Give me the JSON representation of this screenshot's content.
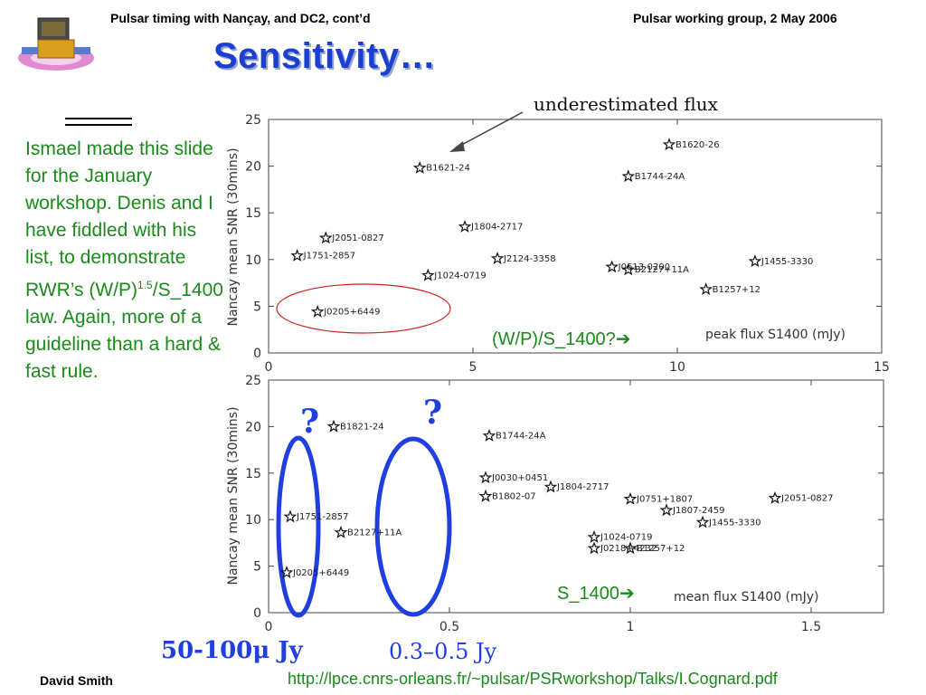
{
  "header": {
    "left": "Pulsar timing with Nançay, and DC2, cont’d",
    "right": "Pulsar working group, 2 May 2006"
  },
  "title": "Sensitivity…",
  "body_text": {
    "part1": "Ismael made this slide for the January workshop. Denis and I have fiddled with his list, to demonstrate RWR’s (W/P)",
    "sup": "1.5",
    "part2": "/S_1400 law. Again, more of a guideline than a hard & fast rule."
  },
  "arrow_labels": {
    "wp": "(W/P)/S_1400?",
    "s1400": "S_1400",
    "arrow_glyph": "➔"
  },
  "footer": {
    "author": "David Smith",
    "url": "http://lpce.cnrs-orleans.fr/~pulsar/PSRworkshop/Talks/I.Cognard.pdf"
  },
  "colors": {
    "green_text": "#1a8a1a",
    "title_blue": "#1a3fd1",
    "ellipse_blue": "#1f3fe0",
    "ellipse_red": "#cc2222"
  },
  "annotations": {
    "underestimated": "underestimated flux",
    "range_low": "50-100μ Jy",
    "range_high": "0.3–0.5 Jy",
    "question": "?"
  },
  "chart_data": [
    {
      "type": "scatter",
      "xlabel": "peak flux S1400 (mJy)",
      "ylabel": "Nancay mean SNR (30mins)",
      "xlim": [
        0,
        15
      ],
      "ylim": [
        0,
        25
      ],
      "xticks": [
        0,
        5,
        10,
        15
      ],
      "yticks": [
        0,
        5,
        10,
        15,
        20,
        25
      ],
      "points": [
        {
          "name": "B1620-26",
          "x": 9.8,
          "y": 22.3
        },
        {
          "name": "B1621-24",
          "x": 3.7,
          "y": 19.8
        },
        {
          "name": "B1744-24A",
          "x": 8.8,
          "y": 18.9
        },
        {
          "name": "J1804-2717",
          "x": 4.8,
          "y": 13.5
        },
        {
          "name": "J2051-0827",
          "x": 1.4,
          "y": 12.3
        },
        {
          "name": "J1751-2857",
          "x": 0.7,
          "y": 10.4
        },
        {
          "name": "J2124-3358",
          "x": 5.6,
          "y": 10.1
        },
        {
          "name": "J1024-0719",
          "x": 3.9,
          "y": 8.3
        },
        {
          "name": "J0613-0200",
          "x": 8.4,
          "y": 9.2
        },
        {
          "name": "B2127+11A",
          "x": 8.8,
          "y": 8.9
        },
        {
          "name": "J1455-3330",
          "x": 11.9,
          "y": 9.8
        },
        {
          "name": "B1257+12",
          "x": 10.7,
          "y": 6.8
        },
        {
          "name": "J0205+6449",
          "x": 1.2,
          "y": 4.4
        }
      ]
    },
    {
      "type": "scatter",
      "xlabel": "mean flux S1400 (mJy)",
      "ylabel": "Nancay mean SNR (30mins)",
      "xlim": [
        0,
        1.7
      ],
      "ylim": [
        0,
        25
      ],
      "xticks": [
        0,
        0.5,
        1,
        1.5
      ],
      "yticks": [
        0,
        5,
        10,
        15,
        20,
        25
      ],
      "points": [
        {
          "name": "B1821-24",
          "x": 0.18,
          "y": 20.0
        },
        {
          "name": "B1744-24A",
          "x": 0.61,
          "y": 19.0
        },
        {
          "name": "J0030+0451",
          "x": 0.6,
          "y": 14.5
        },
        {
          "name": "J1804-2717",
          "x": 0.78,
          "y": 13.5
        },
        {
          "name": "B1802-07",
          "x": 0.6,
          "y": 12.5
        },
        {
          "name": "J0751+1807",
          "x": 1.0,
          "y": 12.2
        },
        {
          "name": "J1807-2459",
          "x": 1.1,
          "y": 11.0
        },
        {
          "name": "J2051-0827",
          "x": 1.4,
          "y": 12.3
        },
        {
          "name": "J1455-3330",
          "x": 1.2,
          "y": 9.7
        },
        {
          "name": "J1751-2857",
          "x": 0.06,
          "y": 10.3
        },
        {
          "name": "B2127+11A",
          "x": 0.2,
          "y": 8.6
        },
        {
          "name": "J1024-0719",
          "x": 0.9,
          "y": 8.1
        },
        {
          "name": "J0218+4232",
          "x": 0.9,
          "y": 6.9
        },
        {
          "name": "B1257+12",
          "x": 1.0,
          "y": 6.9
        },
        {
          "name": "J0205+6449",
          "x": 0.05,
          "y": 4.3
        }
      ]
    }
  ]
}
